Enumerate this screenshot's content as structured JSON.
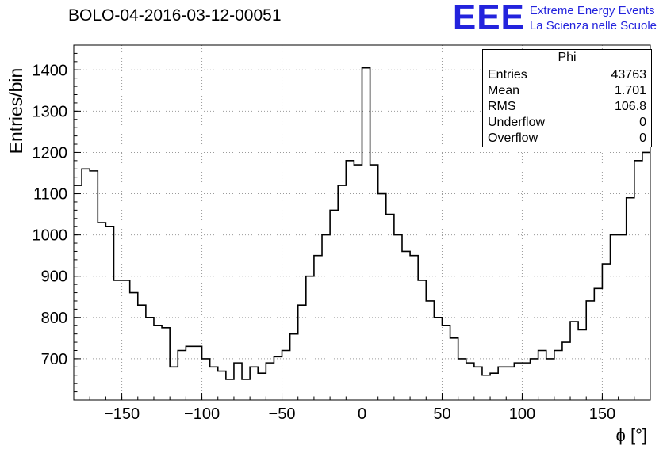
{
  "title": "BOLO-04-2016-03-12-00051",
  "logo": {
    "eee": "EEE",
    "line1": "Extreme Energy Events",
    "line2": "La Scienza nelle Scuole",
    "color": "#2323dd"
  },
  "stats": {
    "title": "Phi",
    "rows": [
      {
        "label": "Entries",
        "value": "43763"
      },
      {
        "label": "Mean",
        "value": "1.701"
      },
      {
        "label": "RMS",
        "value": "106.8"
      },
      {
        "label": "Underflow",
        "value": "0"
      },
      {
        "label": "Overflow",
        "value": "0"
      }
    ]
  },
  "chart_data": {
    "type": "bar",
    "style": "step-histogram",
    "title": "BOLO-04-2016-03-12-00051",
    "xlabel": "ϕ [°]",
    "ylabel": "Entries/bin",
    "xlim": [
      -180,
      180
    ],
    "ylim": [
      600,
      1460
    ],
    "bin_width": 5,
    "bin_start": -180,
    "values": [
      1120,
      1160,
      1155,
      1030,
      1020,
      890,
      890,
      860,
      830,
      800,
      780,
      775,
      680,
      720,
      730,
      730,
      700,
      680,
      670,
      650,
      690,
      650,
      680,
      665,
      690,
      705,
      720,
      760,
      830,
      900,
      950,
      1000,
      1060,
      1120,
      1180,
      1170,
      1405,
      1170,
      1100,
      1050,
      1000,
      960,
      950,
      890,
      840,
      800,
      780,
      750,
      700,
      690,
      680,
      660,
      665,
      680,
      680,
      690,
      690,
      700,
      720,
      700,
      720,
      740,
      790,
      770,
      840,
      870,
      930,
      1000,
      1000,
      1090,
      1180,
      1200
    ],
    "x_major_ticks": [
      -150,
      -100,
      -50,
      0,
      50,
      100,
      150
    ],
    "y_major_ticks": [
      700,
      800,
      900,
      1000,
      1100,
      1200,
      1300,
      1400
    ],
    "x_minor_step": 10,
    "y_minor_step": 20,
    "grid": true,
    "grid_color": "#9a9a9a",
    "line_color": "#000000",
    "legend_position": "none"
  }
}
